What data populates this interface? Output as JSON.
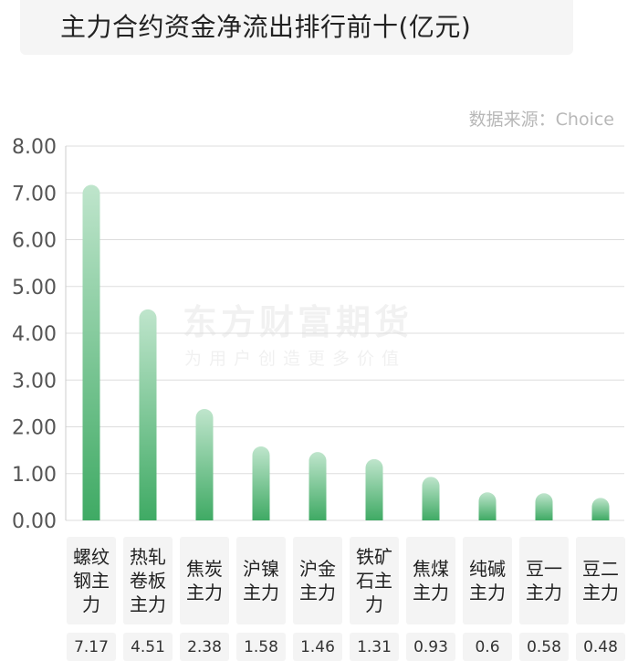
{
  "header": {
    "title": "主力合约资金净流出排行前十(亿元)"
  },
  "source_label": "数据来源：Choice",
  "watermark": {
    "brand": "东方财富期货",
    "slogan": "为用户创造更多价值"
  },
  "colors": {
    "bar_top": "#bfe5cc",
    "bar_bottom": "#3faa64",
    "grid": "#dddddd"
  },
  "chart_data": {
    "type": "bar",
    "title": "主力合约资金净流出排行前十(亿元)",
    "categories": [
      "螺纹钢主力",
      "热轧卷板主力",
      "焦炭主力",
      "沪镍主力",
      "沪金主力",
      "铁矿石主力",
      "焦煤主力",
      "纯碱主力",
      "豆一主力",
      "豆二主力"
    ],
    "category_lines": [
      [
        "螺纹",
        "钢主",
        "力"
      ],
      [
        "热轧",
        "卷板",
        "主力"
      ],
      [
        "焦炭",
        "主力"
      ],
      [
        "沪镍",
        "主力"
      ],
      [
        "沪金",
        "主力"
      ],
      [
        "铁矿",
        "石主",
        "力"
      ],
      [
        "焦煤",
        "主力"
      ],
      [
        "纯碱",
        "主力"
      ],
      [
        "豆一",
        "主力"
      ],
      [
        "豆二",
        "主力"
      ]
    ],
    "values": [
      7.17,
      4.51,
      2.38,
      1.58,
      1.46,
      1.31,
      0.93,
      0.6,
      0.58,
      0.48
    ],
    "value_labels": [
      "7.17",
      "4.51",
      "2.38",
      "1.58",
      "1.46",
      "1.31",
      "0.93",
      "0.6",
      "0.58",
      "0.48"
    ],
    "yticks": [
      "0.00",
      "1.00",
      "2.00",
      "3.00",
      "4.00",
      "5.00",
      "6.00",
      "7.00",
      "8.00"
    ],
    "ylim": [
      0,
      8
    ],
    "grid": true,
    "legend": "none"
  }
}
